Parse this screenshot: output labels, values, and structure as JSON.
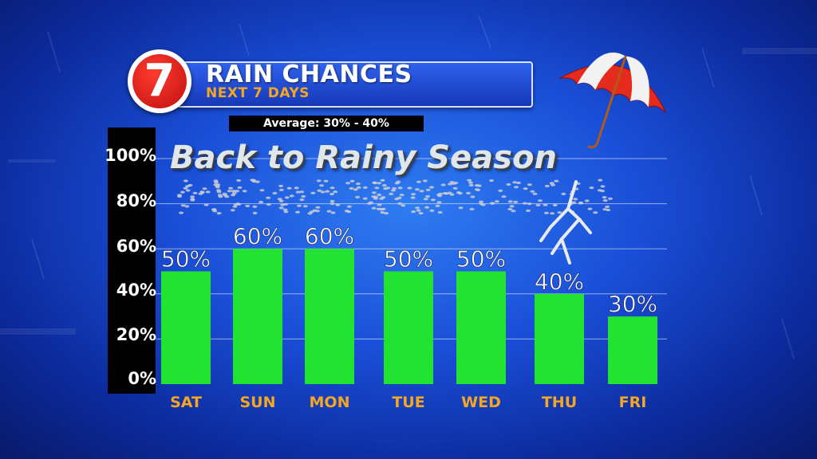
{
  "header": {
    "logo_text": "7",
    "title": "RAIN CHANCES",
    "subtitle": "NEXT 7 DAYS",
    "average": "Average: 30% - 40%"
  },
  "overlay_text": "Back to Rainy Season",
  "colors": {
    "bar": "#22e232",
    "day_label": "#f5a623",
    "title_box": "#1f4bd6",
    "background": "#1a4fd8"
  },
  "icons": [
    "umbrella-icon",
    "lightning-icon",
    "raindrops-icon"
  ],
  "chart_data": {
    "type": "bar",
    "title": "RAIN CHANCES",
    "categories": [
      "SAT",
      "SUN",
      "MON",
      "TUE",
      "WED",
      "THU",
      "FRI"
    ],
    "values": [
      50,
      60,
      60,
      50,
      50,
      40,
      30
    ],
    "data_labels": [
      "50%",
      "60%",
      "60%",
      "50%",
      "50%",
      "40%",
      "30%"
    ],
    "ylim": [
      0,
      100
    ],
    "yticks": [
      "0%",
      "20%",
      "40%",
      "60%",
      "80%",
      "100%"
    ],
    "grid": true,
    "legend": "none"
  }
}
